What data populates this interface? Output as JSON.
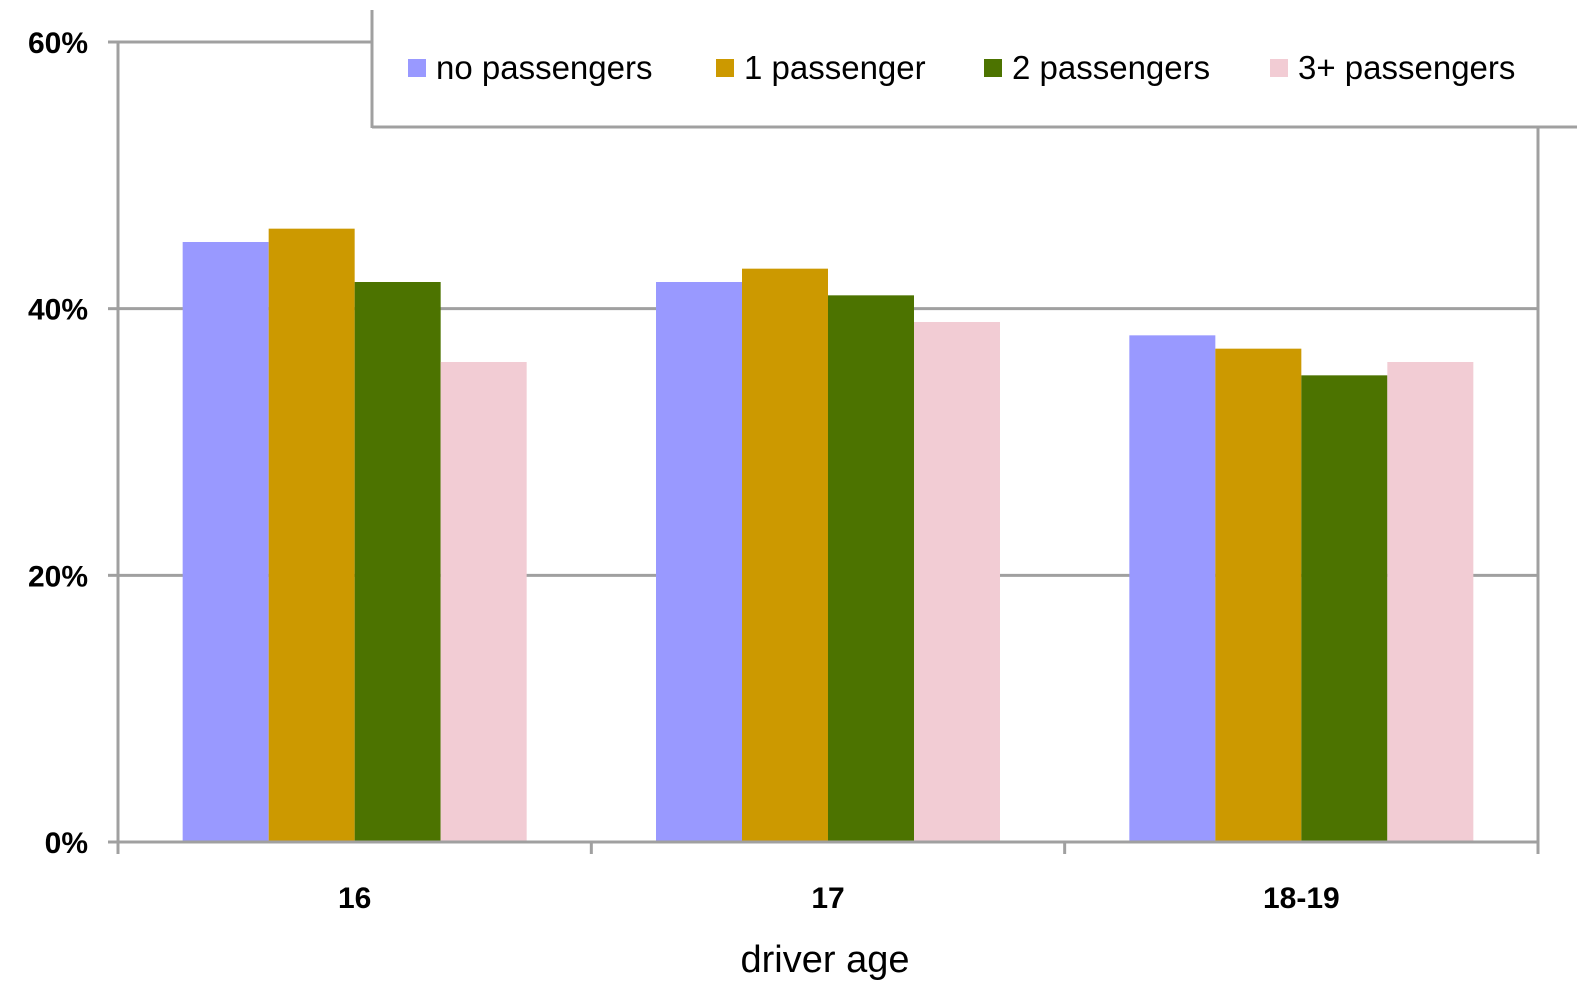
{
  "chart_data": {
    "type": "bar",
    "title": "",
    "xlabel": "driver age",
    "ylabel": "",
    "categories": [
      "16",
      "17",
      "18-19"
    ],
    "series": [
      {
        "name": "no passengers",
        "values": [
          45,
          42,
          38
        ],
        "color": "#9999FF"
      },
      {
        "name": "1 passenger",
        "values": [
          46,
          43,
          37
        ],
        "color": "#CC9900"
      },
      {
        "name": "2 passengers",
        "values": [
          42,
          41,
          35
        ],
        "color": "#4C7300"
      },
      {
        "name": "3+ passengers",
        "values": [
          36,
          39,
          36
        ],
        "color": "#F2CCD4"
      }
    ],
    "ylim": [
      0,
      60
    ],
    "yticks": [
      {
        "value": 0,
        "label": "0%"
      },
      {
        "value": 20,
        "label": "20%"
      },
      {
        "value": 40,
        "label": "40%"
      },
      {
        "value": 60,
        "label": "60%"
      }
    ],
    "grid": true,
    "legend_position": "top-right",
    "gridline_color": "#A0A0A0"
  }
}
